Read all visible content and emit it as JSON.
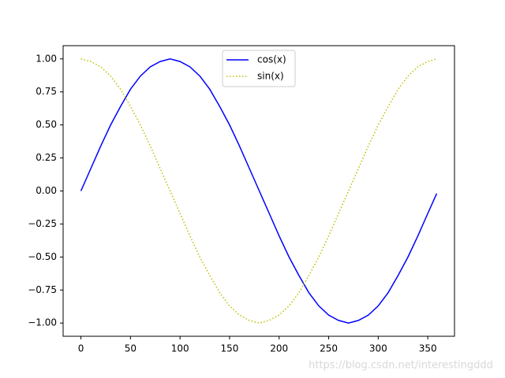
{
  "chart_data": {
    "type": "line",
    "x": [
      0,
      10,
      20,
      30,
      40,
      50,
      60,
      70,
      80,
      90,
      100,
      110,
      120,
      130,
      140,
      150,
      160,
      170,
      180,
      190,
      200,
      210,
      220,
      230,
      240,
      250,
      260,
      270,
      280,
      290,
      300,
      310,
      320,
      330,
      340,
      350,
      359
    ],
    "series": [
      {
        "name": "cos(x)",
        "color": "#0000ff",
        "style": "solid",
        "values": [
          0,
          0.17,
          0.34,
          0.5,
          0.64,
          0.77,
          0.87,
          0.94,
          0.98,
          1,
          0.98,
          0.94,
          0.87,
          0.77,
          0.64,
          0.5,
          0.34,
          0.17,
          0,
          -0.17,
          -0.34,
          -0.5,
          -0.64,
          -0.77,
          -0.87,
          -0.94,
          -0.98,
          -1,
          -0.98,
          -0.94,
          -0.87,
          -0.77,
          -0.64,
          -0.5,
          -0.34,
          -0.17,
          -0.02
        ]
      },
      {
        "name": "sin(x)",
        "color": "#bfbf00",
        "style": "dotted",
        "values": [
          1,
          0.98,
          0.94,
          0.87,
          0.77,
          0.64,
          0.5,
          0.34,
          0.17,
          0,
          -0.17,
          -0.34,
          -0.5,
          -0.64,
          -0.77,
          -0.87,
          -0.94,
          -0.98,
          -1,
          -0.98,
          -0.94,
          -0.87,
          -0.77,
          -0.64,
          -0.5,
          -0.34,
          -0.17,
          0,
          0.17,
          0.34,
          0.5,
          0.64,
          0.77,
          0.87,
          0.94,
          0.98,
          1
        ]
      }
    ],
    "xlim": [
      -17.95,
      376.95
    ],
    "xticks": [
      0,
      50,
      100,
      150,
      200,
      250,
      300,
      350
    ],
    "ylim": [
      -1.1,
      1.1
    ],
    "yticks": [
      {
        "value": -1,
        "label": "−1.00"
      },
      {
        "value": -0.75,
        "label": "−0.75"
      },
      {
        "value": -0.5,
        "label": "−0.50"
      },
      {
        "value": -0.25,
        "label": "−0.25"
      },
      {
        "value": 0,
        "label": "0.00"
      },
      {
        "value": 0.25,
        "label": "0.25"
      },
      {
        "value": 0.5,
        "label": "0.50"
      },
      {
        "value": 0.75,
        "label": "0.75"
      },
      {
        "value": 1,
        "label": "1.00"
      }
    ],
    "legend": "upper center",
    "grid": false,
    "watermark": "https://blog.csdn.net/interestingddd"
  }
}
